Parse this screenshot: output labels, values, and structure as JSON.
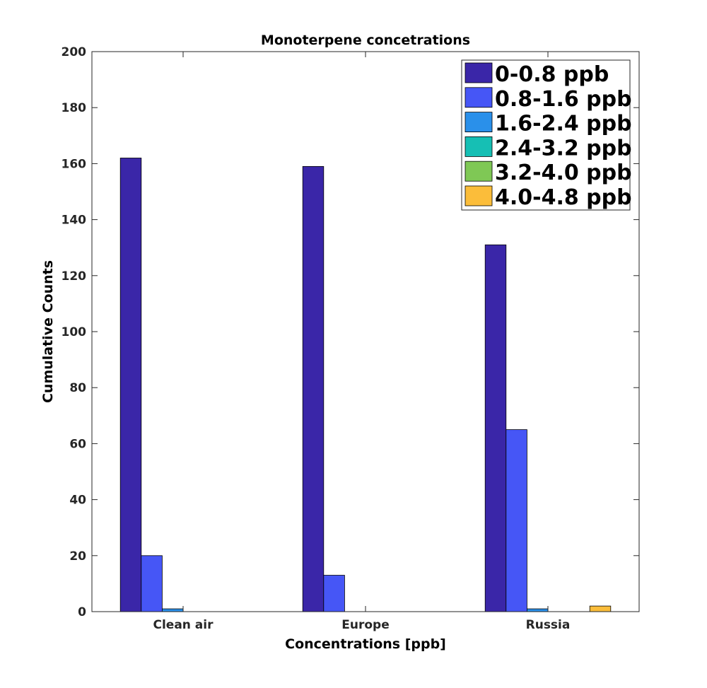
{
  "chart_data": {
    "type": "bar",
    "title": "Monoterpene concetrations",
    "xlabel": "Concentrations [ppb]",
    "ylabel": "Cumulative Counts",
    "categories": [
      "Clean air",
      "Europe",
      "Russia"
    ],
    "ylim": [
      0,
      200
    ],
    "yticks": [
      "0",
      "20",
      "40",
      "60",
      "80",
      "100",
      "120",
      "140",
      "160",
      "180",
      "200"
    ],
    "grid": false,
    "legend_position": "top-right",
    "series": [
      {
        "name": "0-0.8 ppb",
        "color": "#3a26a8",
        "values": [
          162,
          159,
          131
        ]
      },
      {
        "name": "0.8-1.6 ppb",
        "color": "#4656f6",
        "values": [
          20,
          13,
          65
        ]
      },
      {
        "name": "1.6-2.4 ppb",
        "color": "#2a90ea",
        "values": [
          1,
          0,
          1
        ]
      },
      {
        "name": "2.4-3.2 ppb",
        "color": "#16bfb4",
        "values": [
          0,
          0,
          0
        ]
      },
      {
        "name": "3.2-4.0 ppb",
        "color": "#7fc855",
        "values": [
          0,
          0,
          0
        ]
      },
      {
        "name": "4.0-4.8 ppb",
        "color": "#fbbd3a",
        "values": [
          0,
          0,
          2
        ]
      }
    ]
  }
}
